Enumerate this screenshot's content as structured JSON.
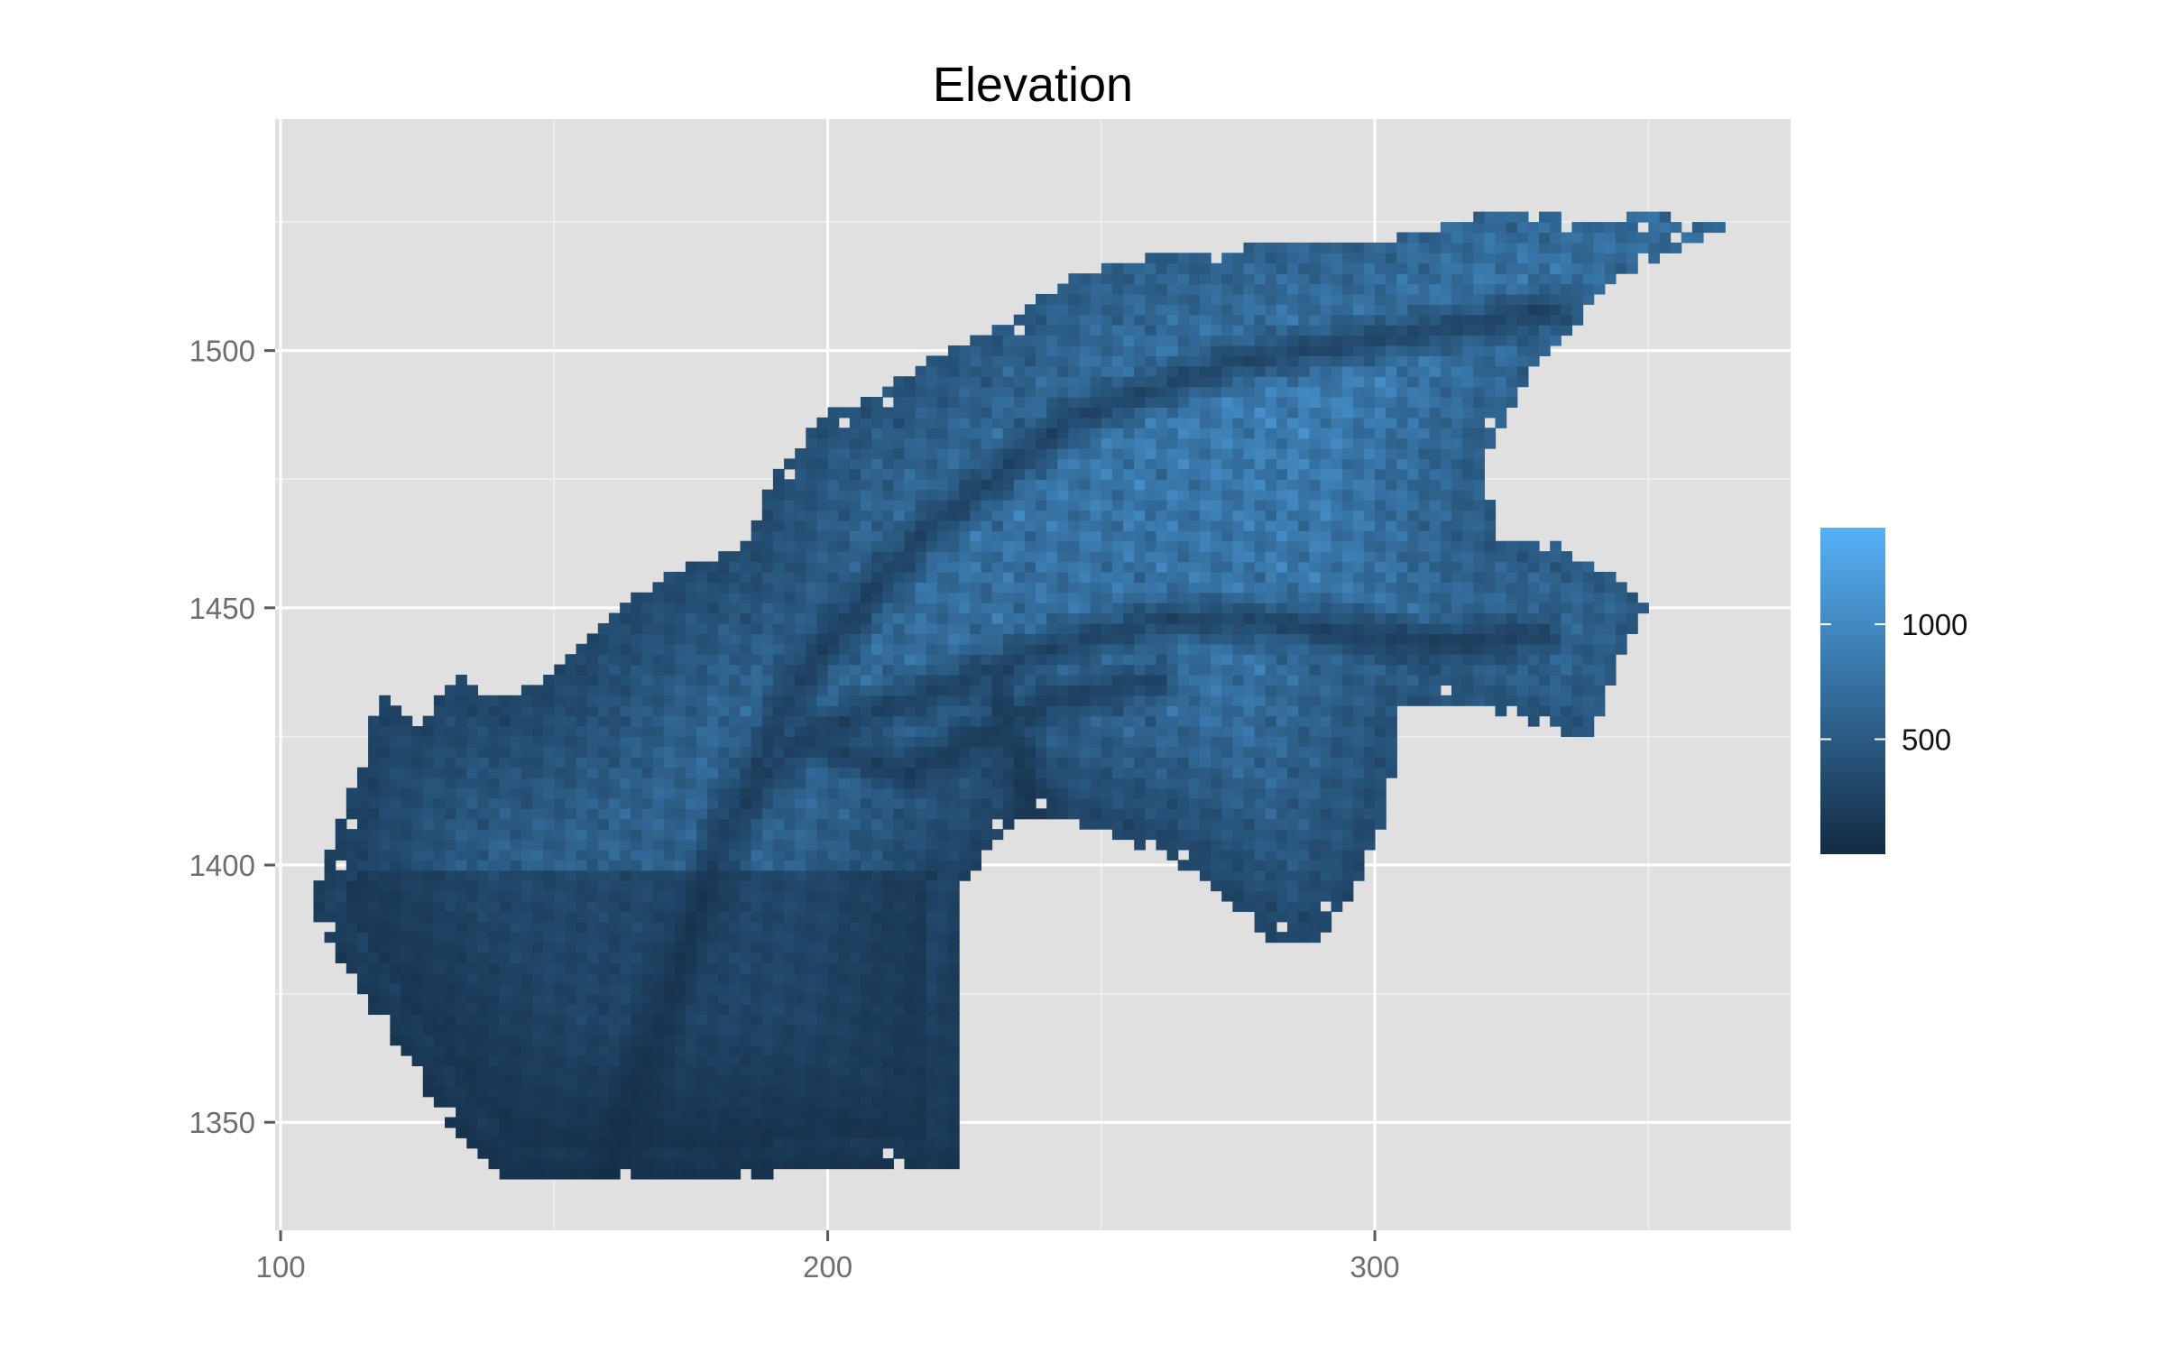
{
  "chart_data": {
    "type": "heatmap",
    "title": "Elevation",
    "xlabel": "",
    "ylabel": "",
    "xlim": [
      99,
      376
    ],
    "ylim": [
      1329,
      1545
    ],
    "x_ticks": [
      100,
      200,
      300
    ],
    "y_ticks": [
      1350,
      1400,
      1450,
      1500
    ],
    "grid": true,
    "panel_background": "#e0e0e0",
    "grid_color": "#ffffff",
    "color_scale": {
      "low": "#132b43",
      "high": "#56b1f7",
      "min": 0,
      "max": 1420,
      "breaks": [
        500,
        1000
      ],
      "break_labels": [
        "500",
        "1000"
      ],
      "legend_position": "right"
    },
    "series": [
      {
        "name": "",
        "description": "gridded elevation raster",
        "x_range": [
          106,
          365
        ],
        "y_range": [
          1339,
          1528
        ]
      }
    ]
  }
}
